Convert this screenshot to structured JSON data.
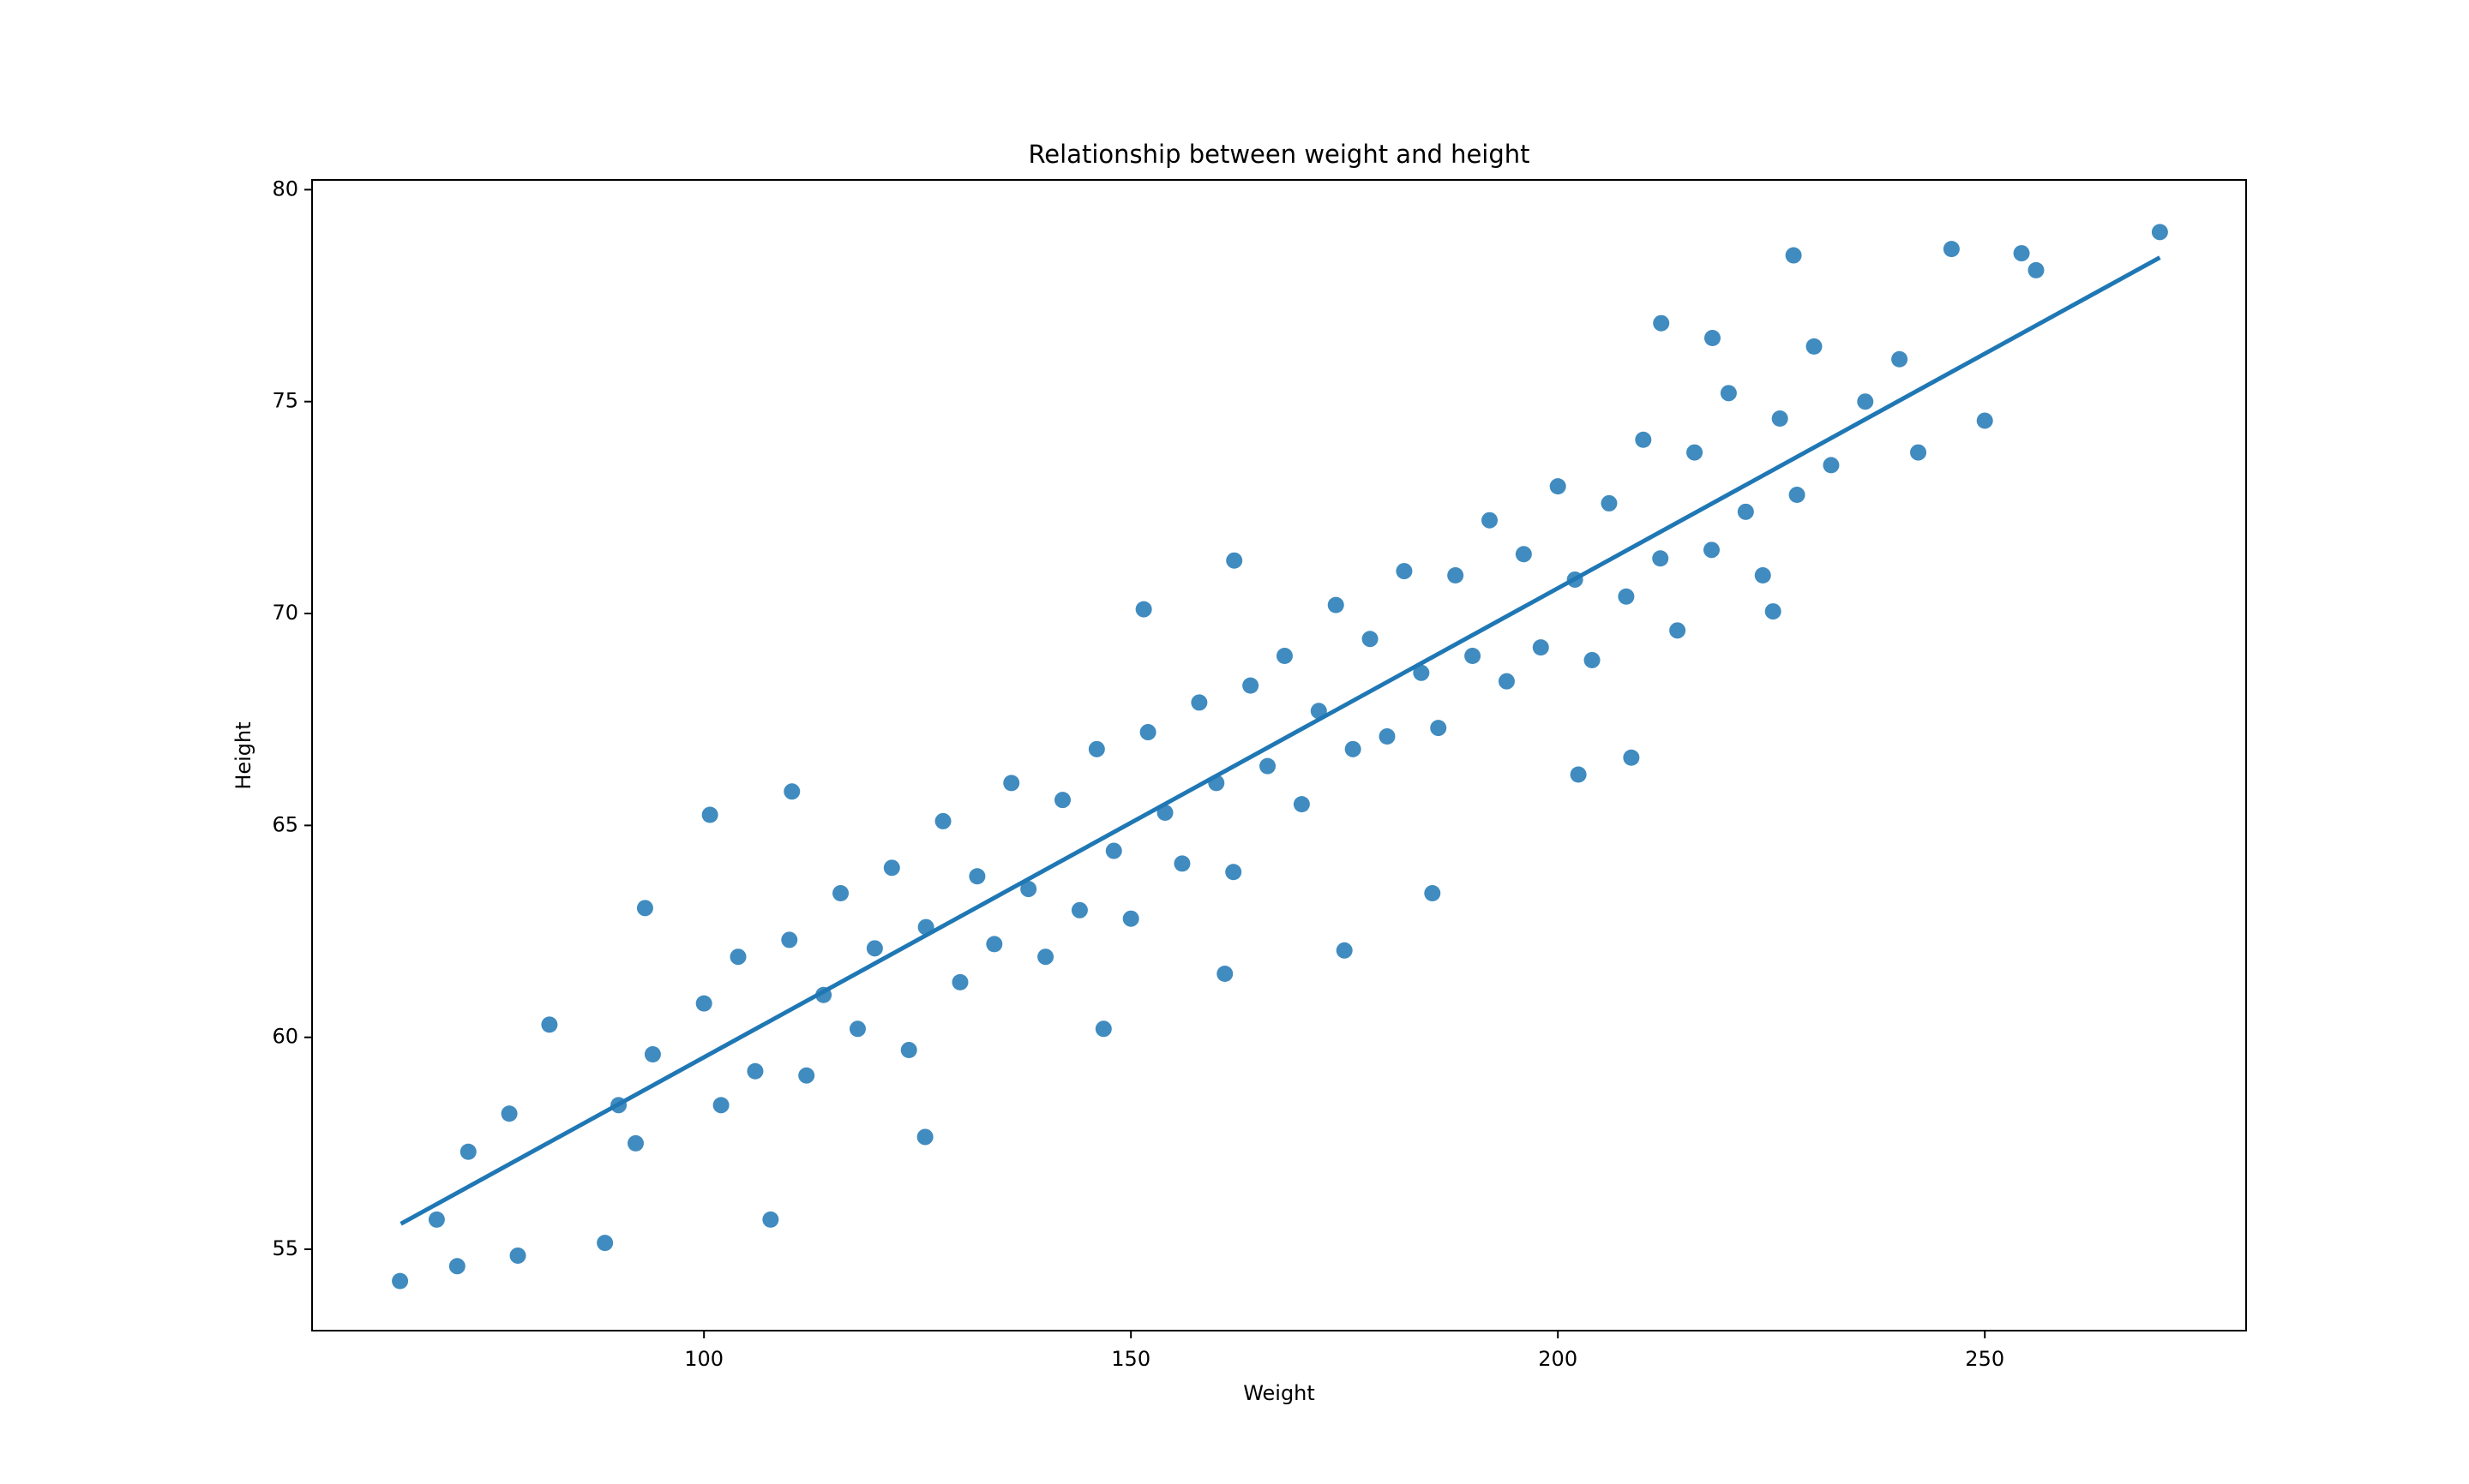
{
  "chart_data": {
    "type": "scatter",
    "title": "Relationship between weight and height",
    "x_label": "Weight",
    "y_label": "Height",
    "color": "#1f77b4",
    "xlim": [
      54.1,
      280.6
    ],
    "ylim": [
      53.08,
      80.23
    ],
    "xticks": [
      100,
      150,
      200,
      250
    ],
    "yticks": [
      55,
      60,
      65,
      70,
      75,
      80
    ],
    "grid": false,
    "x": [
      64.4,
      71.1,
      68.7,
      72.4,
      78.2,
      77.2,
      81.9,
      93.1,
      100.7,
      110.3,
      107.8,
      88.4,
      270.5,
      246.1,
      227.6,
      254.3,
      256.0,
      250,
      242.2,
      185.3,
      175.0,
      161.0,
      208.6,
      202.4,
      151.5,
      162.1,
      212.1,
      218.1,
      225.2,
      146.8,
      125.9,
      90,
      92,
      94,
      100,
      102,
      104,
      106,
      110,
      112,
      114,
      116,
      118,
      120,
      122,
      124,
      126,
      128,
      130,
      132,
      134,
      136,
      138,
      140,
      142,
      144,
      146,
      148,
      150,
      152,
      154,
      156,
      158,
      160,
      162,
      164,
      166,
      168,
      170,
      172,
      174,
      176,
      178,
      180,
      182,
      184,
      186,
      188,
      190,
      192,
      194,
      196,
      198,
      200,
      202,
      204,
      206,
      208,
      210,
      212,
      214,
      216,
      218,
      220,
      222,
      224,
      226,
      228,
      230,
      232,
      236,
      240
    ],
    "y": [
      54.25,
      54.6,
      55.7,
      57.3,
      54.85,
      58.2,
      60.3,
      63.05,
      65.25,
      65.8,
      55.7,
      55.15,
      79.0,
      78.6,
      78.45,
      78.5,
      78.1,
      74.55,
      73.8,
      63.4,
      62.05,
      61.5,
      66.6,
      66.2,
      70.1,
      71.25,
      76.85,
      76.5,
      70.05,
      60.2,
      57.65,
      58.4,
      57.5,
      59.6,
      60.8,
      58.4,
      61.9,
      59.2,
      62.3,
      59.1,
      61.0,
      63.4,
      60.2,
      62.1,
      64.0,
      59.7,
      62.6,
      65.1,
      61.3,
      63.8,
      62.2,
      66.0,
      63.5,
      61.9,
      65.6,
      63.0,
      66.8,
      64.4,
      62.8,
      67.2,
      65.3,
      64.1,
      67.9,
      66.0,
      63.9,
      68.3,
      66.4,
      69.0,
      65.5,
      67.7,
      70.2,
      66.8,
      69.4,
      67.1,
      71.0,
      68.6,
      67.3,
      70.9,
      69.0,
      72.2,
      68.4,
      71.4,
      69.2,
      73.0,
      70.8,
      68.9,
      72.6,
      70.4,
      74.1,
      71.3,
      69.6,
      73.8,
      71.5,
      75.2,
      72.4,
      70.9,
      74.6,
      72.8,
      76.3,
      73.5,
      75.0,
      76.0
    ],
    "fit_line": {
      "x": [
        64.5,
        270.5
      ],
      "y": [
        55.6,
        78.4
      ]
    }
  }
}
